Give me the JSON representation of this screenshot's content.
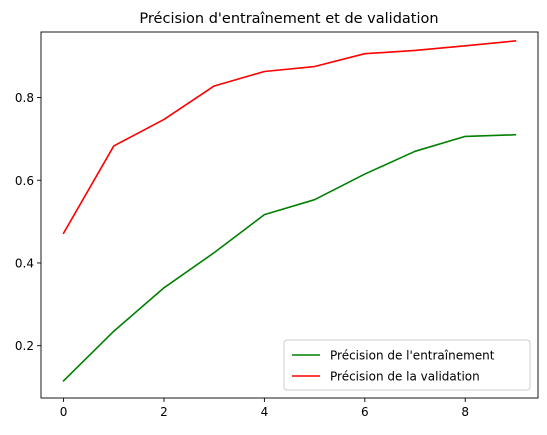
{
  "chart_data": {
    "type": "line",
    "title": "Précision d'entraînement et de validation",
    "xlabel": "",
    "ylabel": "",
    "x": [
      0,
      1,
      2,
      3,
      4,
      5,
      6,
      7,
      8,
      9
    ],
    "xlim": [
      -0.45,
      9.45
    ],
    "ylim": [
      0.0735,
      0.9585
    ],
    "xticks": [
      0,
      2,
      4,
      6,
      8
    ],
    "yticks": [
      0.2,
      0.4,
      0.6,
      0.8
    ],
    "grid": false,
    "legend_position": "lower-right",
    "series": [
      {
        "name": "Précision de l'entraînement",
        "color": "#008000",
        "values": [
          0.115,
          0.235,
          0.34,
          0.425,
          0.517,
          0.553,
          0.615,
          0.67,
          0.706,
          0.71
        ]
      },
      {
        "name": "Précision de la validation",
        "color": "#ff0000",
        "values": [
          0.472,
          0.683,
          0.747,
          0.828,
          0.863,
          0.875,
          0.906,
          0.914,
          0.925,
          0.937
        ]
      }
    ]
  }
}
